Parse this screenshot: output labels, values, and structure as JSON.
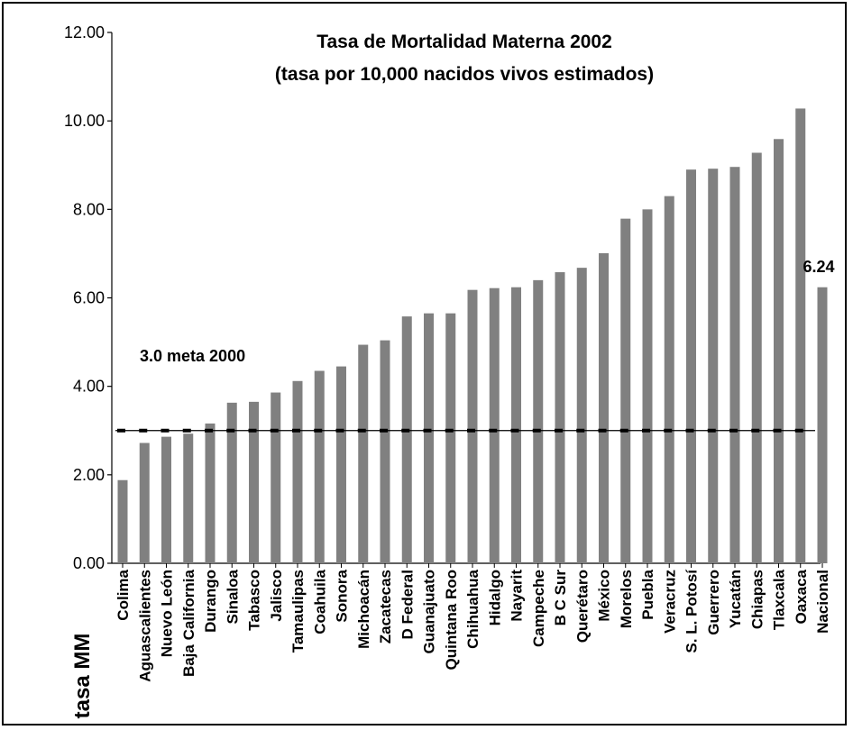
{
  "chart_data": {
    "type": "bar",
    "title": "Tasa de Mortalidad Materna 2002",
    "subtitle": "(tasa por 10,000 nacidos vivos estimados)",
    "ylabel": "tasa MM",
    "xlabel": "",
    "ylim": [
      0,
      12
    ],
    "yticks": [
      "0.00",
      "2.00",
      "4.00",
      "6.00",
      "8.00",
      "10.00",
      "12.00"
    ],
    "ytick_values": [
      0,
      2,
      4,
      6,
      8,
      10,
      12
    ],
    "grid": false,
    "bar_color": "#808080",
    "categories": [
      "Colima",
      "Aguascalientes",
      "Nuevo León",
      "Baja California",
      "Durango",
      "Sinaloa",
      "Tabasco",
      "Jalisco",
      "Tamaulipas",
      "Coahuila",
      "Sonora",
      "Michoacán",
      "Zacatecas",
      "D Federal",
      "Guanajuato",
      "Quintana Roo",
      "Chihuahua",
      "Hidalgo",
      "Nayarit",
      "Campeche",
      "B C Sur",
      "Querétaro",
      "México",
      "Morelos",
      "Puebla",
      "Veracruz",
      "S. L. Potosí",
      "Guerrero",
      "Yucatán",
      "Chiapas",
      "Tlaxcala",
      "Oaxaca",
      "Nacional"
    ],
    "values": [
      1.88,
      2.72,
      2.86,
      2.93,
      3.16,
      3.63,
      3.65,
      3.86,
      4.12,
      4.35,
      4.45,
      4.94,
      5.04,
      5.58,
      5.65,
      5.65,
      6.18,
      6.22,
      6.24,
      6.4,
      6.58,
      6.68,
      7.01,
      7.79,
      8.0,
      8.3,
      8.9,
      8.92,
      8.96,
      9.28,
      9.59,
      10.28,
      6.24
    ],
    "reference_line": {
      "value": 3.0,
      "label": "3.0 meta 2000"
    },
    "value_annotation": {
      "category": "Nacional",
      "label": "6.24"
    }
  }
}
